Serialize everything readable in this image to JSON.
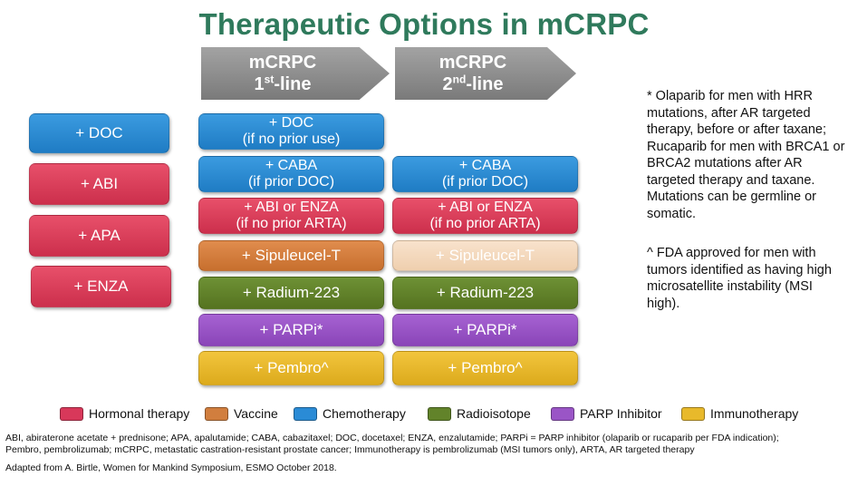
{
  "title": "Therapeutic Options in mCRPC",
  "headers": {
    "first": {
      "main": "mCRPC",
      "ordinal": "1",
      "suffix": "st",
      "rest": "-line"
    },
    "second": {
      "main": "mCRPC",
      "ordinal": "2",
      "suffix": "nd",
      "rest": "-line"
    }
  },
  "left_column": [
    "+ DOC",
    "+ ABI",
    "+ APA",
    "+ ENZA"
  ],
  "first_line": [
    {
      "line1": "+ DOC",
      "line2": "(if no prior use)"
    },
    {
      "line1": "+ CABA",
      "line2": "(if prior DOC)"
    },
    {
      "line1": "+ ABI or ENZA",
      "line2": "(if no prior ARTA)"
    },
    {
      "line1": "+ Sipuleucel-T"
    },
    {
      "line1": "+ Radium-223"
    },
    {
      "line1": "+ PARPi*"
    },
    {
      "line1": "+ Pembro^"
    }
  ],
  "second_line": [
    {
      "line1": "+ CABA",
      "line2": "(if prior DOC)"
    },
    {
      "line1": "+ ABI or ENZA",
      "line2": "(if no prior ARTA)"
    },
    {
      "line1": "+ Sipuleucel-T"
    },
    {
      "line1": "+ Radium-223"
    },
    {
      "line1": "+ PARPi*"
    },
    {
      "line1": "+ Pembro^"
    }
  ],
  "notes": {
    "parp": "* Olaparib for men with HRR mutations, after AR targeted therapy, before or after taxane; Rucaparib for men with BRCA1 or BRCA2 mutations after AR targeted therapy and taxane. Mutations can be germline or somatic.",
    "pembro": "^ FDA approved for men with tumors identified as having high microsatellite instability (MSI high)."
  },
  "legend": [
    {
      "label": "Hormonal therapy",
      "color": "#d8385a"
    },
    {
      "label": "Vaccine",
      "color": "#d17e3e"
    },
    {
      "label": "Chemotherapy",
      "color": "#2a8bd6"
    },
    {
      "label": "Radioisotope",
      "color": "#62832a"
    },
    {
      "label": "PARP Inhibitor",
      "color": "#9a55c6"
    },
    {
      "label": "Immunotherapy",
      "color": "#e8b92b"
    }
  ],
  "footer": {
    "abbreviations_1": "ABI, abiraterone acetate + prednisone; APA, apalutamide; CABA, cabazitaxel; DOC, docetaxel; ENZA, enzalutamide; PARPi = PARP inhibitor (olaparib or rucaparib per FDA indication);",
    "abbreviations_2": "Pembro, pembrolizumab; mCRPC, metastatic castration-resistant prostate cancer; Immunotherapy is pembrolizumab (MSI tumors only), ARTA, AR targeted therapy",
    "source": "Adapted from A. Birtle, Women for Mankind Symposium, ESMO October 2018."
  }
}
